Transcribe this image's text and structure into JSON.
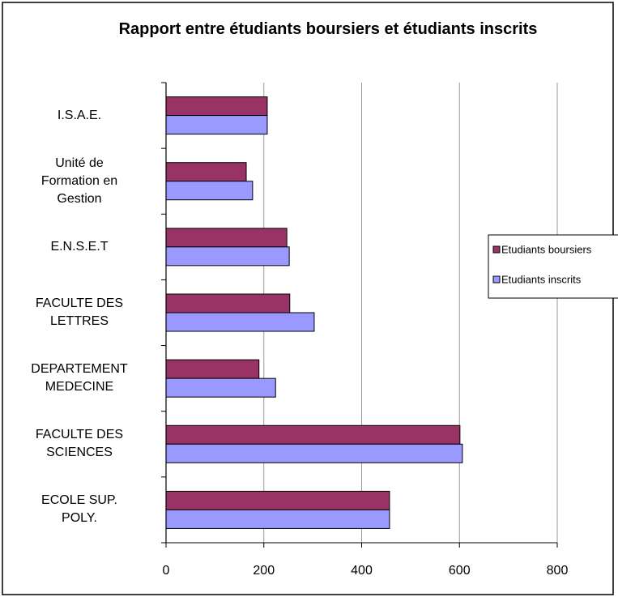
{
  "chart_data": {
    "type": "bar",
    "orientation": "horizontal",
    "title": "Rapport entre étudiants boursiers et étudiants inscrits",
    "categories": [
      "I.S.A.E.",
      "Unité de\nFormation en\nGestion",
      "E.N.S.E.T",
      "FACULTE DES\nLETTRES",
      "DEPARTEMENT\nMEDECINE",
      "FACULTE DES\nSCIENCES",
      "ECOLE SUP.\nPOLY."
    ],
    "series": [
      {
        "name": "Etudiants boursiers",
        "color": "#993366",
        "values": [
          207,
          164,
          247,
          253,
          190,
          601,
          457
        ]
      },
      {
        "name": "Etudiants inscrits",
        "color": "#9999ff",
        "values": [
          207,
          177,
          252,
          303,
          224,
          606,
          457
        ]
      }
    ],
    "xlim": [
      0,
      800
    ],
    "xticks": [
      0,
      200,
      400,
      600,
      800
    ],
    "grid": true,
    "legend": "right"
  }
}
